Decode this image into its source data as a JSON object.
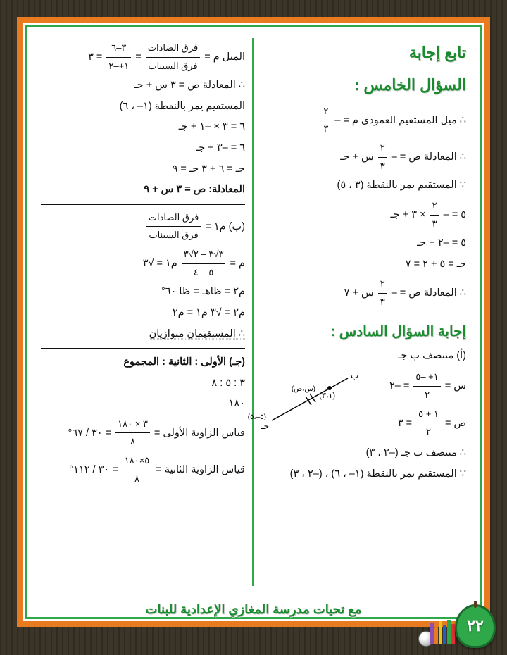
{
  "title": "تابع إجابة",
  "q5_heading": "السؤال الخامس :",
  "r": {
    "l1a": "∴ ميل المستقيم العمودى م = – ",
    "l1_num": "٢",
    "l1_den": "٣",
    "l2a": "∴ المعادلة ص = – ",
    "l2_num": "٢",
    "l2_den": "٣",
    "l2b": " س + جـ",
    "l3": "∵ المستقيم يمر بالنقطة (٣ ، ٥)",
    "l4a": "٥ = – ",
    "l4_num": "٢",
    "l4_den": "٣",
    "l4b": " × ٣ + جـ",
    "l5": "٥ = –٢ + جـ",
    "l6": "جـ = ٥ + ٢ = ٧",
    "l7a": "∴ المعادلة ص = – ",
    "l7_num": "٢",
    "l7_den": "٣",
    "l7b": " س + ٧"
  },
  "q6_heading": "إجابة السؤال السادس :",
  "r2": {
    "l1": "(أ) منتصف ب جـ",
    "l2a": "س = ",
    "l2_num": "١+ –٥",
    "l2_den": "٢",
    "l2b": " = –٢",
    "l3a": "ص = ",
    "l3_num": "١ + ٥",
    "l3_den": "٢",
    "l3b": " = ٣",
    "l4": "∴ منتصف ب جـ (–٢ ، ٣)",
    "l5": "∵ المستقيم يمر بالنقطة (١– ، ٦) ، (–٢ ، ٣)"
  },
  "diag": {
    "b": "ب",
    "c": "جـ",
    "pt": "(٣،١)",
    "mid": "(س،ص)",
    "end": "(٥–،٥)"
  },
  "l": {
    "l1a": "الميل م = ",
    "l1_num1": "فرق الصادات",
    "l1_den1": "فرق السينات",
    "l1_eq": " = ",
    "l1_num2": "٣–٦",
    "l1_den2": "١+–٢",
    "l1b": " = ٣",
    "l2": "∴ المعادلة ص = ٣ س + جـ",
    "l3": "المستقيم يمر بالنقطة (١– ، ٦)",
    "l4": "٦ = ٣ × –١ + جـ",
    "l5": "٦ = –٣ + جـ",
    "l6": "جـ = ٦ + ٣          جـ = ٩",
    "l7": "المعادلة:  ص = ٣ س + ٩",
    "lb1a": "(ب) م١ = ",
    "lb1_num": "فرق الصادات",
    "lb1_den": "فرق السينات",
    "lb2a": "م = ",
    "lb2_num": "٣√٣ – ٢√٣",
    "lb2_den": "٥ – ٤",
    "lb2b": "      م١ = √٣",
    "lb3": "م٢ = ظاهـ = ظا ٦٠°",
    "lb4": "م٢ = √٣      م١ = م٢",
    "lb5": "∴ المستقيمان متوازيان",
    "lc1": "(جـ) الأولى : الثانية : المجموع",
    "lc2": "٣    :    ٥    :    ٨",
    "lc3": "               ١٨٠",
    "lc4a": "قياس الزاوية الأولى = ",
    "lc4_num": "٣ × ١٨٠",
    "lc4_den": "٨",
    "lc4b": " = ٣٠ / ٦٧°",
    "lc5a": "قياس الزاوية الثانية = ",
    "lc5_num": "٥×١٨٠",
    "lc5_den": "٨",
    "lc5b": " = ٣٠ / ١١٢°"
  },
  "footer": "مع تحيات مدرسة المغازي الإعدادية للبنات",
  "page_num": "٢٢",
  "pencil_colors": [
    "#e03030",
    "#2fa84a",
    "#2060c0",
    "#e8c21f",
    "#e87a1f",
    "#8a4fb0"
  ],
  "pencil_heights": [
    28,
    34,
    26,
    32,
    24,
    30
  ]
}
